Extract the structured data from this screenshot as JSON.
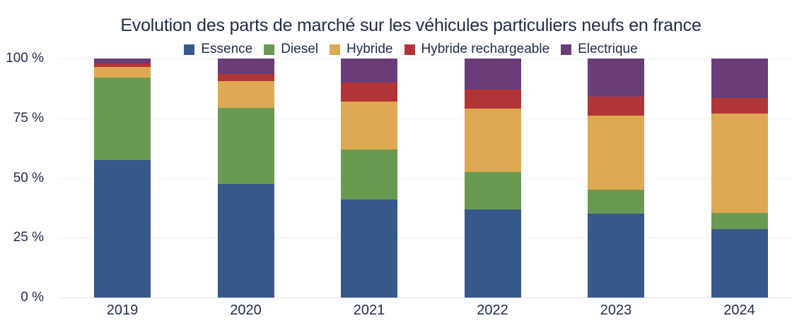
{
  "colors": {
    "text": "#1f2b4c",
    "gridline": "#f0f0f0",
    "baseline": "#e2e2e2",
    "background": "#ffffff"
  },
  "chart_data": {
    "type": "bar",
    "stacked": true,
    "percent_stacked": true,
    "title": "Evolution des parts de marché sur les véhicules particuliers neufs en france",
    "legend_position": "top",
    "grid": true,
    "xlabel": "",
    "ylabel": "",
    "ylim": [
      0,
      100
    ],
    "categories": [
      "2019",
      "2020",
      "2021",
      "2022",
      "2023",
      "2024"
    ],
    "series": [
      {
        "name": "Essence",
        "color": "#36588a",
        "values": [
          57.5,
          47.5,
          41,
          37,
          35,
          28.5
        ]
      },
      {
        "name": "Diesel",
        "color": "#6a9a52",
        "values": [
          34.5,
          32,
          21,
          15.5,
          10,
          7
        ]
      },
      {
        "name": "Hybride",
        "color": "#dfa852",
        "values": [
          4.5,
          11,
          20,
          26.5,
          31,
          41.5
        ]
      },
      {
        "name": "Hybride rechargeable",
        "color": "#b13536",
        "values": [
          1.5,
          3,
          8,
          8,
          8,
          6.5
        ]
      },
      {
        "name": "Electrique",
        "color": "#6a3d79",
        "values": [
          2,
          6.5,
          10,
          13,
          16,
          16.5
        ]
      }
    ],
    "y_axis": {
      "ticks": [
        {
          "value": 0,
          "label": "0 %"
        },
        {
          "value": 25,
          "label": "25 %"
        },
        {
          "value": 50,
          "label": "50 %"
        },
        {
          "value": 75,
          "label": "75 %"
        },
        {
          "value": 100,
          "label": "100 %"
        }
      ]
    }
  }
}
